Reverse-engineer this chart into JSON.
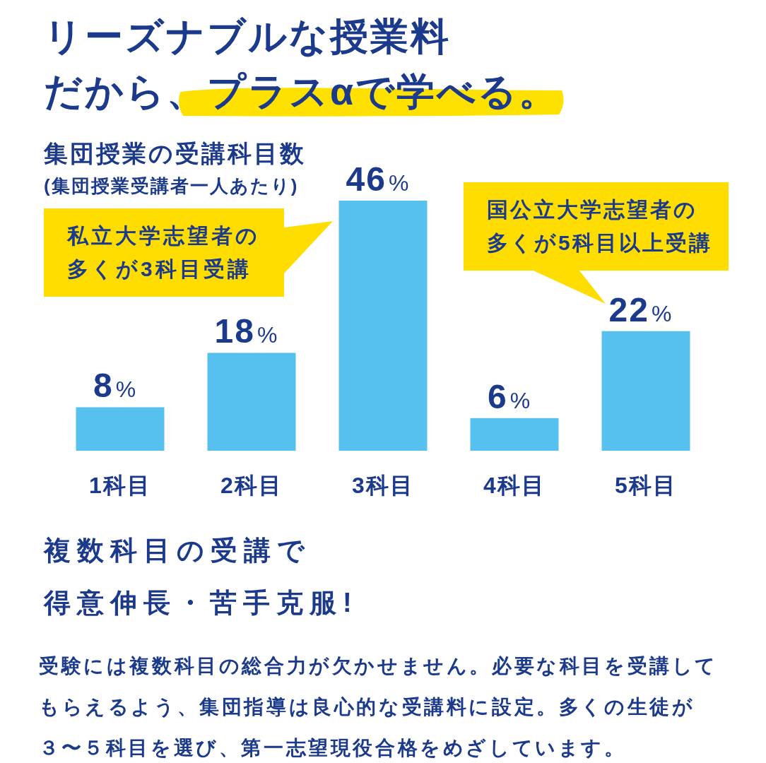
{
  "chart_data": {
    "type": "bar",
    "title": "リーズナブルな授業料だから、プラスαで学べる。",
    "subtitle": "集団授業の受講科目数",
    "categories": [
      "1科目",
      "2科目",
      "3科目",
      "4科目",
      "5科目"
    ],
    "values": [
      8,
      18,
      46,
      6,
      22
    ],
    "value_labels": [
      "8%",
      "18%",
      "46%",
      "6%",
      "22%"
    ],
    "color": "#56c1ee",
    "annotations": [
      "(集団授業受講者一人あたり)",
      "私立大学志望者の多くが3科目受講",
      "国公立大学志望者の多くが5科目以上受講",
      "複数科目の受講で得意伸長・苦手克服!",
      "受験には複数科目の総合力が欠かせません。必要な科目を受講してもらえるよう、集団指導は良心的な受講料に設定。多くの生徒が３〜５科目を選び、第一志望現役合格をめざしています。"
    ]
  }
}
